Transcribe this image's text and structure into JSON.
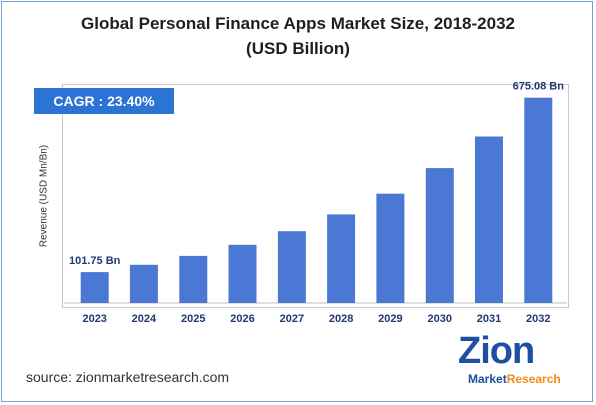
{
  "chart_data": {
    "type": "bar",
    "title_line1": "Global Personal Finance Apps Market Size, 2018-2032",
    "title_line2": "(USD Billion)",
    "ylabel": "Revenue (USD Mn/Bn)",
    "xlabel": "",
    "categories": [
      "2023",
      "2024",
      "2025",
      "2026",
      "2027",
      "2028",
      "2029",
      "2030",
      "2031",
      "2032"
    ],
    "values": [
      101.75,
      125.6,
      155.0,
      191.2,
      236.0,
      291.3,
      359.5,
      443.6,
      547.4,
      675.08
    ],
    "data_labels": [
      {
        "index": 0,
        "text": "101.75 Bn"
      },
      {
        "index": 9,
        "text": "675.08 Bn"
      }
    ],
    "ylim": [
      0,
      720
    ],
    "grid": false,
    "bar_color": "#4a78d4"
  },
  "cagr": {
    "text": "CAGR :  23.40%",
    "color": "#2b74d6"
  },
  "source": {
    "text": "source: zionmarketresearch.com"
  },
  "logo": {
    "word": "Zion",
    "line2_a": "Market",
    "line2_b": "Research"
  }
}
